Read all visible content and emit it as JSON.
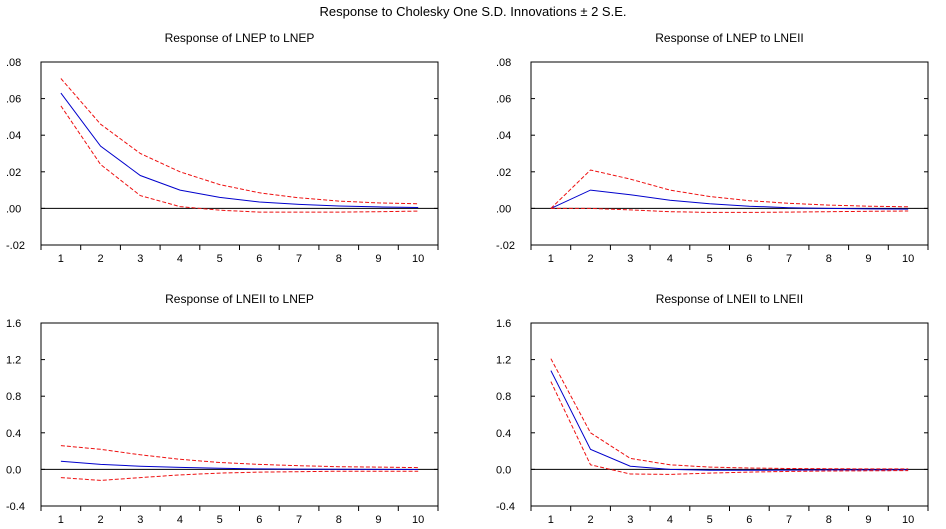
{
  "title": "Response to Cholesky One S.D. Innovations ± 2 S.E.",
  "colors": {
    "response": "#0000cc",
    "band": "#ee1111",
    "axis": "#000000"
  },
  "chart_data": [
    {
      "type": "line",
      "title": "Response of LNEP to LNEP",
      "x": [
        1,
        2,
        3,
        4,
        5,
        6,
        7,
        8,
        9,
        10
      ],
      "ylim": [
        -0.02,
        0.08
      ],
      "yticks": [
        -0.02,
        0.0,
        0.02,
        0.04,
        0.06,
        0.08
      ],
      "ytick_labels": [
        "-.02",
        ".00",
        ".02",
        ".04",
        ".06",
        ".08"
      ],
      "series": [
        {
          "role": "response",
          "values": [
            0.063,
            0.034,
            0.018,
            0.01,
            0.006,
            0.0035,
            0.0022,
            0.0013,
            0.0008,
            0.0005
          ]
        },
        {
          "role": "upper",
          "values": [
            0.071,
            0.046,
            0.03,
            0.02,
            0.013,
            0.0085,
            0.0058,
            0.004,
            0.003,
            0.0025
          ]
        },
        {
          "role": "lower",
          "values": [
            0.056,
            0.024,
            0.007,
            0.001,
            -0.001,
            -0.002,
            -0.002,
            -0.002,
            -0.0018,
            -0.0015
          ]
        }
      ]
    },
    {
      "type": "line",
      "title": "Response of LNEP to LNEII",
      "x": [
        1,
        2,
        3,
        4,
        5,
        6,
        7,
        8,
        9,
        10
      ],
      "ylim": [
        -0.02,
        0.08
      ],
      "yticks": [
        -0.02,
        0.0,
        0.02,
        0.04,
        0.06,
        0.08
      ],
      "ytick_labels": [
        "-.02",
        ".00",
        ".02",
        ".04",
        ".06",
        ".08"
      ],
      "series": [
        {
          "role": "response",
          "values": [
            0.0,
            0.01,
            0.0075,
            0.0045,
            0.0025,
            0.0012,
            0.0004,
            0.0,
            -0.0003,
            -0.0004
          ]
        },
        {
          "role": "upper",
          "values": [
            0.0,
            0.021,
            0.016,
            0.01,
            0.0065,
            0.0042,
            0.0028,
            0.0018,
            0.0012,
            0.0009
          ]
        },
        {
          "role": "lower",
          "values": [
            0.0,
            0.0,
            -0.0008,
            -0.0018,
            -0.0022,
            -0.0022,
            -0.002,
            -0.0018,
            -0.0016,
            -0.0014
          ]
        }
      ]
    },
    {
      "type": "line",
      "title": "Response of LNEII to LNEP",
      "x": [
        1,
        2,
        3,
        4,
        5,
        6,
        7,
        8,
        9,
        10
      ],
      "ylim": [
        -0.4,
        1.6
      ],
      "yticks": [
        -0.4,
        0.0,
        0.4,
        0.8,
        1.2,
        1.6
      ],
      "ytick_labels": [
        "-0.4",
        "0.0",
        "0.4",
        "0.8",
        "1.2",
        "1.6"
      ],
      "series": [
        {
          "role": "response",
          "values": [
            0.09,
            0.055,
            0.035,
            0.022,
            0.012,
            0.006,
            0.003,
            0.001,
            0.0,
            -0.001
          ]
        },
        {
          "role": "upper",
          "values": [
            0.26,
            0.22,
            0.16,
            0.11,
            0.075,
            0.055,
            0.04,
            0.03,
            0.025,
            0.02
          ]
        },
        {
          "role": "lower",
          "values": [
            -0.09,
            -0.12,
            -0.09,
            -0.06,
            -0.04,
            -0.03,
            -0.025,
            -0.02,
            -0.02,
            -0.02
          ]
        }
      ]
    },
    {
      "type": "line",
      "title": "Response of LNEII to LNEII",
      "x": [
        1,
        2,
        3,
        4,
        5,
        6,
        7,
        8,
        9,
        10
      ],
      "ylim": [
        -0.4,
        1.6
      ],
      "yticks": [
        -0.4,
        0.0,
        0.4,
        0.8,
        1.2,
        1.6
      ],
      "ytick_labels": [
        "-0.4",
        "0.0",
        "0.4",
        "0.8",
        "1.2",
        "1.6"
      ],
      "series": [
        {
          "role": "response",
          "values": [
            1.08,
            0.22,
            0.035,
            0.0,
            -0.01,
            -0.01,
            -0.008,
            -0.006,
            -0.005,
            -0.004
          ]
        },
        {
          "role": "upper",
          "values": [
            1.21,
            0.4,
            0.12,
            0.05,
            0.025,
            0.015,
            0.01,
            0.008,
            0.006,
            0.005
          ]
        },
        {
          "role": "lower",
          "values": [
            0.96,
            0.05,
            -0.05,
            -0.055,
            -0.04,
            -0.03,
            -0.022,
            -0.018,
            -0.015,
            -0.013
          ]
        }
      ]
    }
  ]
}
